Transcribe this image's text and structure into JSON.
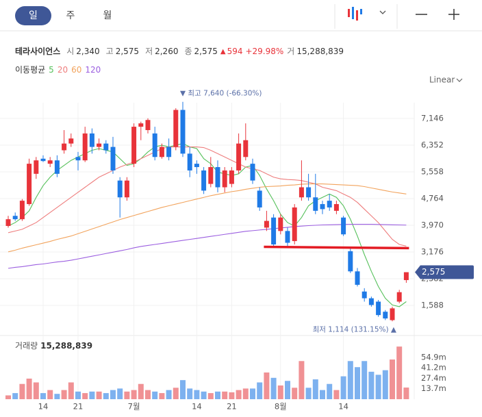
{
  "header": {
    "tabs": [
      "일",
      "주",
      "월"
    ],
    "name": "테라사이언스",
    "quotes": [
      {
        "label": "시",
        "value": "2,340"
      },
      {
        "label": "고",
        "value": "2,575"
      },
      {
        "label": "저",
        "value": "2,260"
      },
      {
        "label": "종",
        "value": "2,575"
      }
    ],
    "change_marker": "▲",
    "change": "594",
    "change_pct": "+29.98%",
    "volume_label": "거",
    "volume": "15,288,839",
    "ma_label": "이동평균",
    "scale": "Linear"
  },
  "chart_data": {
    "type": "candlestick",
    "categories": [
      null,
      null,
      null,
      null,
      null,
      "14",
      null,
      null,
      null,
      null,
      "21",
      null,
      null,
      null,
      null,
      null,
      null,
      null,
      "7월",
      null,
      null,
      null,
      null,
      null,
      null,
      null,
      null,
      "14",
      null,
      null,
      null,
      null,
      "21",
      null,
      null,
      null,
      null,
      null,
      null,
      "8월",
      null,
      null,
      null,
      null,
      null,
      null,
      null,
      null,
      "14",
      null,
      null,
      null,
      null,
      null,
      null,
      null,
      null,
      null
    ],
    "open": [
      3950,
      4250,
      4150,
      4600,
      5500,
      5950,
      5800,
      5900,
      6200,
      6400,
      6000,
      5900,
      6700,
      6300,
      6400,
      6300,
      5300,
      4800,
      5800,
      6900,
      6800,
      6700,
      6000,
      6300,
      6300,
      7400,
      6100,
      5800,
      5600,
      5200,
      5700,
      5100,
      5200,
      5600,
      6000,
      5800,
      5000,
      3900,
      4200,
      3800,
      3800,
      3500,
      4800,
      5100,
      4800,
      4600,
      4700,
      4400,
      4200,
      3200,
      2600,
      2000,
      1800,
      1700,
      1400,
      1150,
      1700,
      2340
    ],
    "high": [
      4250,
      4350,
      4750,
      5950,
      6000,
      6050,
      6000,
      6050,
      6800,
      6700,
      6150,
      6900,
      6850,
      6550,
      6500,
      6600,
      5400,
      5400,
      7000,
      7050,
      7150,
      6900,
      6400,
      6550,
      7450,
      7640,
      6300,
      5900,
      5700,
      6000,
      5900,
      5700,
      5700,
      6700,
      7000,
      5950,
      5100,
      4400,
      4300,
      4300,
      3900,
      4600,
      5900,
      5500,
      5500,
      4700,
      4900,
      4700,
      4250,
      3300,
      2700,
      2100,
      1850,
      1750,
      1450,
      1550,
      2050,
      2575
    ],
    "low": [
      3900,
      4100,
      4100,
      4550,
      5350,
      5850,
      5700,
      5400,
      6100,
      6300,
      5600,
      5850,
      6100,
      6200,
      6100,
      5500,
      4200,
      4700,
      5700,
      6500,
      6700,
      5900,
      5950,
      5900,
      6200,
      6000,
      5400,
      5500,
      4900,
      5100,
      4950,
      4950,
      5100,
      5500,
      5900,
      5200,
      4400,
      3800,
      3300,
      3700,
      3350,
      3400,
      4700,
      4700,
      4300,
      4300,
      4400,
      4300,
      3650,
      2550,
      2150,
      1700,
      1550,
      1250,
      1150,
      1114,
      1650,
      2260
    ],
    "close": [
      4150,
      4150,
      4700,
      5800,
      5900,
      5880,
      5900,
      5500,
      6400,
      6550,
      5900,
      6700,
      6300,
      6400,
      6200,
      5600,
      4800,
      5300,
      6900,
      7000,
      7100,
      6000,
      6300,
      6000,
      7400,
      6100,
      5600,
      5700,
      5000,
      5700,
      5100,
      5600,
      5600,
      6400,
      6500,
      5300,
      4500,
      4100,
      3400,
      4200,
      3450,
      4500,
      5100,
      4800,
      4400,
      4450,
      4500,
      4600,
      3700,
      2600,
      2200,
      1800,
      1600,
      1300,
      1200,
      1500,
      1981,
      2575
    ],
    "up_color": "#e8333a",
    "down_color": "#1f7ae6",
    "ylim": [
      896,
      8632
    ],
    "yticks": [
      {
        "value": 7146,
        "label": "7,146"
      },
      {
        "value": 6352,
        "label": "6,352"
      },
      {
        "value": 5558,
        "label": "5,558"
      },
      {
        "value": 4764,
        "label": "4,764"
      },
      {
        "value": 3970,
        "label": "3,970"
      },
      {
        "value": 3176,
        "label": "3,176"
      },
      {
        "value": 2382,
        "label": "2,382"
      },
      {
        "value": 1588,
        "label": "1,588"
      }
    ],
    "grid": true,
    "max_label": "▼ 최고 7,640 (-66.30%)",
    "min_label": "최저 1,114 (131.15%) ▲",
    "last_label": "2,575",
    "trend_line": {
      "from": {
        "index": 37,
        "price": 3330
      },
      "to": {
        "index": 57,
        "price": 3290
      },
      "color": "#e31b23"
    },
    "moving_averages": [
      {
        "name": "5",
        "color": "#55c05a",
        "values": [
          3950,
          4050,
          4200,
          4400,
          4800,
          5150,
          5400,
          5600,
          5750,
          5900,
          6000,
          6100,
          6200,
          6250,
          6200,
          6150,
          5950,
          5750,
          5800,
          5950,
          6150,
          6300,
          6350,
          6300,
          6350,
          6400,
          6300,
          6250,
          5950,
          5800,
          5550,
          5500,
          5450,
          5500,
          5700,
          5750,
          5450,
          5050,
          4700,
          4300,
          4050,
          3950,
          4200,
          4550,
          4700,
          4800,
          4900,
          4800,
          4550,
          4150,
          3650,
          3100,
          2600,
          2150,
          1800,
          1600,
          1550,
          1700
        ]
      },
      {
        "name": "20",
        "color": "#ee7d7d",
        "values": [
          3750,
          3800,
          3850,
          3950,
          4050,
          4200,
          4350,
          4500,
          4650,
          4800,
          4950,
          5100,
          5250,
          5400,
          5500,
          5600,
          5700,
          5780,
          5850,
          5950,
          6050,
          6150,
          6250,
          6300,
          6300,
          6300,
          6300,
          6300,
          6280,
          6200,
          6100,
          6000,
          5900,
          5800,
          5700,
          5650,
          5600,
          5500,
          5400,
          5350,
          5330,
          5320,
          5300,
          5250,
          5200,
          5100,
          5050,
          5000,
          4900,
          4800,
          4650,
          4450,
          4250,
          4050,
          3800,
          3550,
          3400,
          3350
        ]
      },
      {
        "name": "60",
        "color": "#f2a35c",
        "values": [
          3180,
          3230,
          3290,
          3340,
          3390,
          3440,
          3490,
          3550,
          3600,
          3650,
          3720,
          3790,
          3860,
          3930,
          4000,
          4070,
          4140,
          4200,
          4260,
          4320,
          4380,
          4440,
          4500,
          4550,
          4600,
          4650,
          4700,
          4750,
          4800,
          4850,
          4890,
          4930,
          4970,
          5000,
          5040,
          5070,
          5100,
          5120,
          5130,
          5140,
          5160,
          5170,
          5190,
          5200,
          5200,
          5200,
          5190,
          5180,
          5170,
          5160,
          5150,
          5120,
          5080,
          5040,
          5000,
          4960,
          4930,
          4900
        ]
      },
      {
        "name": "120",
        "color": "#9b5ee0",
        "values": [
          2690,
          2720,
          2740,
          2770,
          2800,
          2820,
          2850,
          2880,
          2900,
          2930,
          2970,
          3010,
          3050,
          3090,
          3130,
          3170,
          3210,
          3250,
          3300,
          3340,
          3370,
          3400,
          3430,
          3460,
          3490,
          3520,
          3550,
          3580,
          3610,
          3640,
          3670,
          3700,
          3730,
          3760,
          3790,
          3810,
          3830,
          3850,
          3870,
          3890,
          3910,
          3930,
          3945,
          3960,
          3970,
          3980,
          3985,
          3990,
          3995,
          4000,
          4000,
          4000,
          4000,
          3995,
          3990,
          3985,
          3980,
          3975
        ]
      }
    ],
    "volume": {
      "label": "거래량",
      "value_label": "15,288,839",
      "up_color": "#f09194",
      "down_color": "#7db1ef",
      "values": [
        5000000,
        8000000,
        20000000,
        27000000,
        22000000,
        8000000,
        12000000,
        7000000,
        12000000,
        22000000,
        10000000,
        8000000,
        10000000,
        10000000,
        8000000,
        12000000,
        14000000,
        10000000,
        12000000,
        20000000,
        12000000,
        10000000,
        8000000,
        12000000,
        15000000,
        25000000,
        14000000,
        12000000,
        10000000,
        8000000,
        10000000,
        10000000,
        9000000,
        12000000,
        14000000,
        14000000,
        22000000,
        35000000,
        28000000,
        18000000,
        24000000,
        15000000,
        50000000,
        15000000,
        26000000,
        12000000,
        20000000,
        12000000,
        30000000,
        50000000,
        42000000,
        50000000,
        36000000,
        32000000,
        38000000,
        52000000,
        69000000,
        15288839
      ],
      "ylim": [
        0,
        70000000
      ],
      "yticks": [
        {
          "value": 54900000,
          "label": "54.9m"
        },
        {
          "value": 41200000,
          "label": "41.2m"
        },
        {
          "value": 27400000,
          "label": "27.4m"
        },
        {
          "value": 13700000,
          "label": "13.7m"
        }
      ]
    }
  }
}
